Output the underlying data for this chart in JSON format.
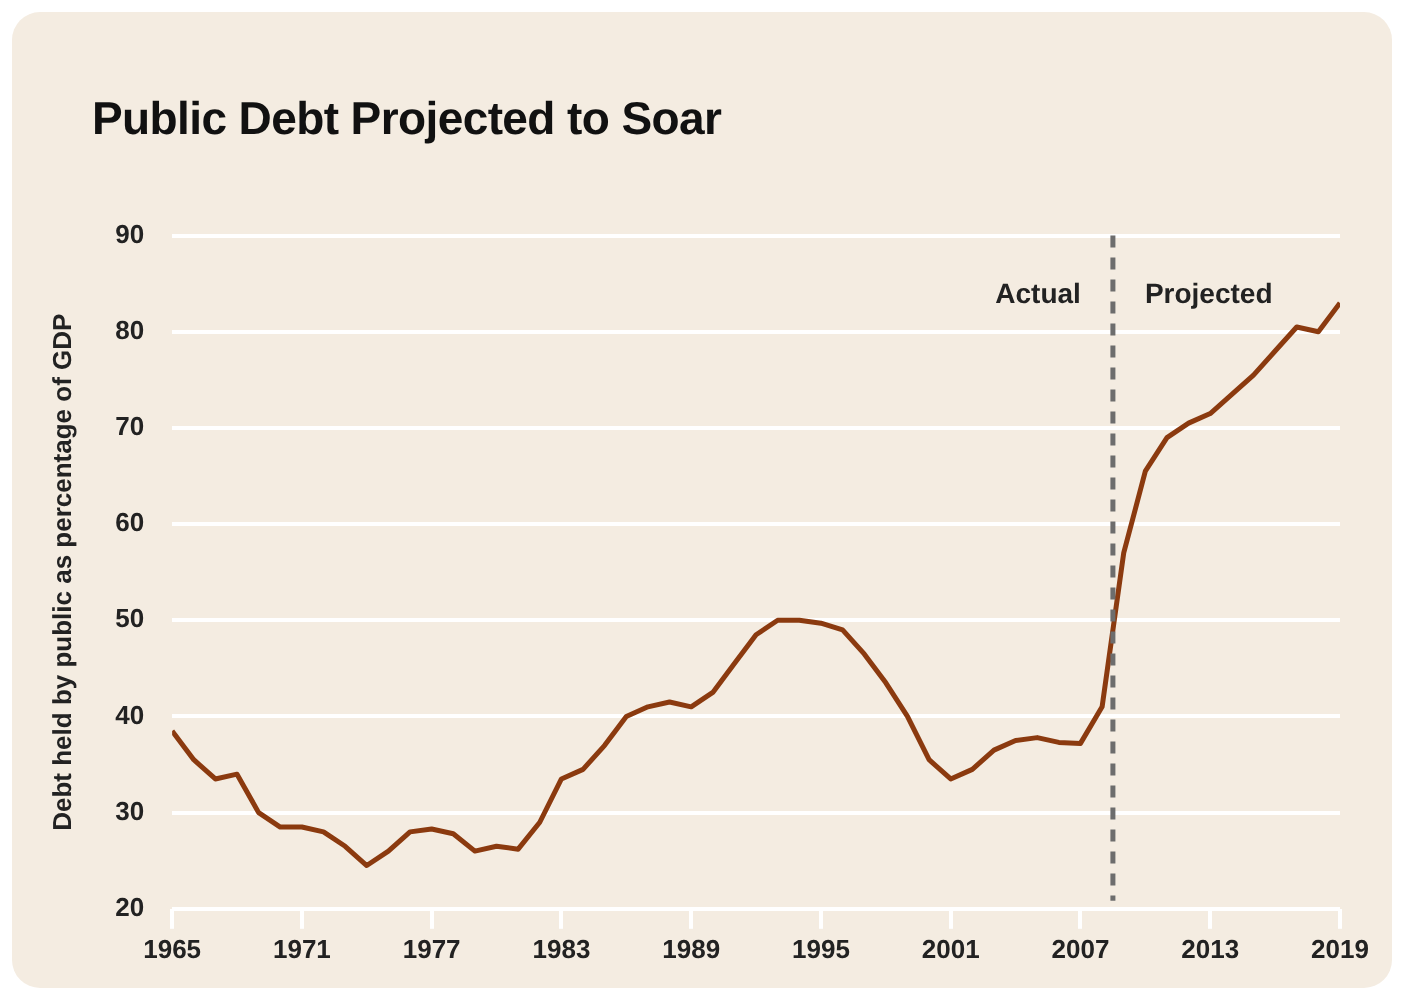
{
  "chart_data": {
    "type": "line",
    "title": "Public Debt Projected to Soar",
    "ylabel": "Debt held by public as percentage of GDP",
    "x": [
      1965,
      1966,
      1967,
      1968,
      1969,
      1970,
      1971,
      1972,
      1973,
      1974,
      1975,
      1976,
      1977,
      1978,
      1979,
      1980,
      1981,
      1982,
      1983,
      1984,
      1985,
      1986,
      1987,
      1988,
      1989,
      1990,
      1991,
      1992,
      1993,
      1994,
      1995,
      1996,
      1997,
      1998,
      1999,
      2000,
      2001,
      2002,
      2003,
      2004,
      2005,
      2006,
      2007,
      2008,
      2009,
      2010,
      2011,
      2012,
      2013,
      2014,
      2015,
      2016,
      2017,
      2018,
      2019
    ],
    "series": [
      {
        "color": "#8b3a0f",
        "values": [
          38.5,
          35.5,
          33.5,
          34,
          30,
          28.5,
          28.5,
          28,
          26.5,
          24.5,
          26,
          28,
          28.3,
          27.8,
          26,
          26.5,
          26.2,
          29,
          33.5,
          34.5,
          37,
          40,
          41,
          41.5,
          41,
          42.5,
          45.5,
          48.5,
          50,
          50,
          49.7,
          49,
          46.5,
          43.5,
          40,
          35.5,
          33.5,
          34.5,
          36.5,
          37.5,
          37.8,
          37.3,
          37.2,
          41,
          57,
          65.5,
          69,
          70.5,
          71.5,
          73.5,
          75.5,
          78,
          80.5,
          80,
          83
        ]
      }
    ],
    "xlim": [
      1965,
      2019
    ],
    "xticks": [
      1965,
      1971,
      1977,
      1983,
      1989,
      1995,
      2001,
      2007,
      2013,
      2019
    ],
    "ylim": [
      20,
      90
    ],
    "yticks": [
      20,
      30,
      40,
      50,
      60,
      70,
      80,
      90
    ],
    "grid": "y",
    "legend": false,
    "marker": "none",
    "line_style": "solid",
    "ref_lines": [
      {
        "axis": "x",
        "value": 2008.5,
        "color": "#6d6d6d",
        "line_style": "dashed"
      }
    ],
    "annotations": [
      "Actual",
      "Projected"
    ]
  }
}
